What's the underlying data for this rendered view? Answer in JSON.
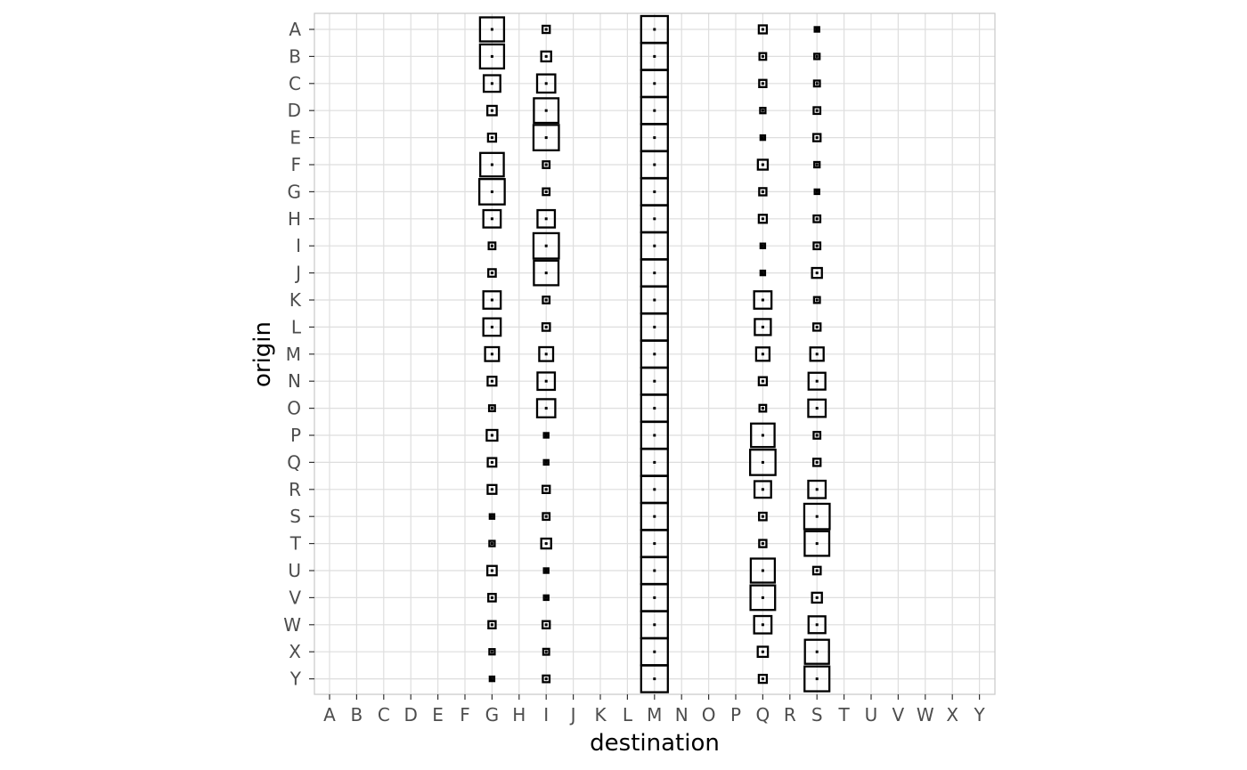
{
  "chart_data": {
    "type": "scatter",
    "subtype": "tile-matrix",
    "xlabel": "destination",
    "ylabel": "origin",
    "x_categories": [
      "A",
      "B",
      "C",
      "D",
      "E",
      "F",
      "G",
      "H",
      "I",
      "J",
      "K",
      "L",
      "M",
      "N",
      "O",
      "P",
      "Q",
      "R",
      "S",
      "T",
      "U",
      "V",
      "W",
      "X",
      "Y"
    ],
    "y_categories": [
      "A",
      "B",
      "C",
      "D",
      "E",
      "F",
      "G",
      "H",
      "I",
      "J",
      "K",
      "L",
      "M",
      "N",
      "O",
      "P",
      "Q",
      "R",
      "S",
      "T",
      "U",
      "V",
      "W",
      "X",
      "Y"
    ],
    "grid": true,
    "legend": "none",
    "colors": {
      "background": "#ffffff",
      "grid": "#dedede",
      "frame": "#c8c8c8",
      "marks": "#000000"
    },
    "series": [
      {
        "destination": "G",
        "values": [
          0.9,
          0.9,
          0.62,
          0.35,
          0.3,
          0.88,
          0.95,
          0.65,
          0.25,
          0.28,
          0.65,
          0.65,
          0.52,
          0.33,
          0.22,
          0.4,
          0.32,
          0.33,
          0.17,
          0.2,
          0.35,
          0.28,
          0.27,
          0.2,
          0.17
        ]
      },
      {
        "destination": "I",
        "values": [
          0.27,
          0.37,
          0.68,
          0.92,
          0.95,
          0.25,
          0.25,
          0.65,
          0.95,
          0.92,
          0.25,
          0.28,
          0.52,
          0.65,
          0.68,
          0.17,
          0.17,
          0.27,
          0.25,
          0.37,
          0.17,
          0.17,
          0.27,
          0.22,
          0.25
        ]
      },
      {
        "destination": "M",
        "values": [
          1,
          1,
          1,
          1,
          1,
          1,
          1,
          1,
          1,
          1,
          1,
          1,
          1,
          1,
          1,
          1,
          1,
          1,
          1,
          1,
          1,
          1,
          1,
          1,
          1
        ]
      },
      {
        "destination": "Q",
        "values": [
          0.3,
          0.25,
          0.27,
          0.2,
          0.17,
          0.37,
          0.27,
          0.3,
          0.17,
          0.17,
          0.65,
          0.6,
          0.5,
          0.3,
          0.25,
          0.88,
          0.95,
          0.62,
          0.28,
          0.27,
          0.9,
          0.92,
          0.65,
          0.38,
          0.3
        ]
      },
      {
        "destination": "S",
        "values": [
          0.17,
          0.2,
          0.22,
          0.25,
          0.27,
          0.2,
          0.17,
          0.25,
          0.25,
          0.37,
          0.22,
          0.27,
          0.5,
          0.63,
          0.65,
          0.25,
          0.27,
          0.65,
          0.95,
          0.92,
          0.28,
          0.37,
          0.63,
          0.9,
          0.93
        ]
      }
    ]
  }
}
